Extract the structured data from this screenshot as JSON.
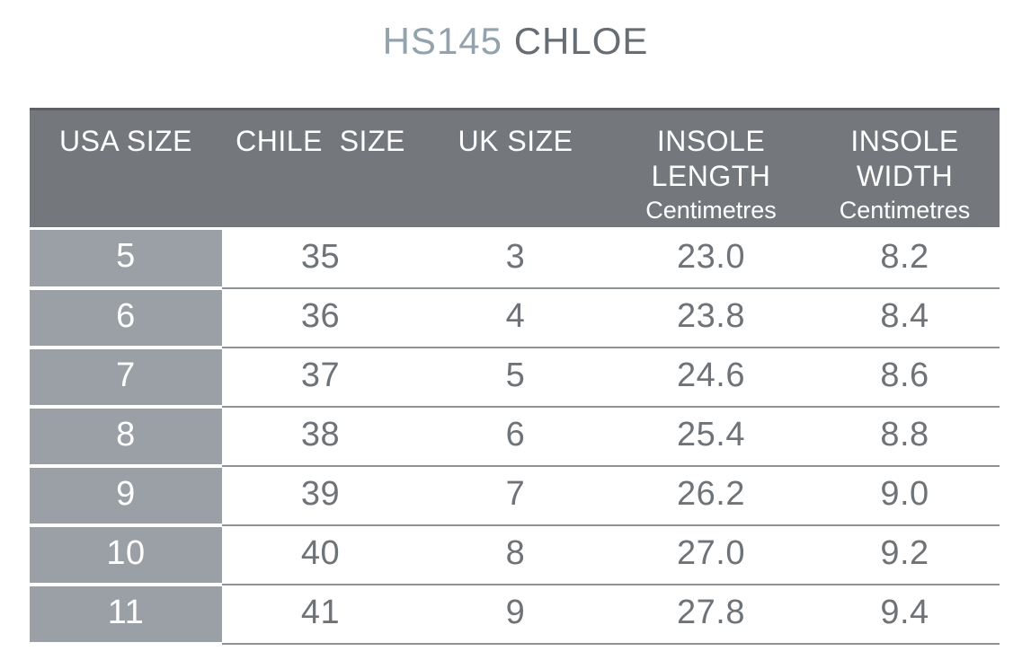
{
  "title": {
    "model": "HS145",
    "name": "CHLOE",
    "full": "HS145 CHLOE"
  },
  "colors": {
    "title_model": "#93a3ad",
    "title_name": "#666d73",
    "header_background": "#74787d",
    "header_top_border": "#5c6064",
    "header_text": "#ffffff",
    "first_column_background": "#9aa0a6",
    "first_column_text": "#ffffff",
    "row_separator_line": "#8e9398",
    "cell_text": "#6e7378",
    "page_background": "#ffffff"
  },
  "table": {
    "columns": [
      {
        "id": "usa",
        "line1": "USA SIZE"
      },
      {
        "id": "chile",
        "line1": "CHILE  SIZE"
      },
      {
        "id": "uk",
        "line1": "UK SIZE"
      },
      {
        "id": "insole_length",
        "line1": "INSOLE",
        "line2": "LENGTH",
        "sub": "Centimetres"
      },
      {
        "id": "insole_width",
        "line1": "INSOLE",
        "line2": "WIDTH",
        "sub": "Centimetres"
      }
    ],
    "rows": [
      {
        "usa": "5",
        "chile": "35",
        "uk": "3",
        "insole_length": "23.0",
        "insole_width": "8.2"
      },
      {
        "usa": "6",
        "chile": "36",
        "uk": "4",
        "insole_length": "23.8",
        "insole_width": "8.4"
      },
      {
        "usa": "7",
        "chile": "37",
        "uk": "5",
        "insole_length": "24.6",
        "insole_width": "8.6"
      },
      {
        "usa": "8",
        "chile": "38",
        "uk": "6",
        "insole_length": "25.4",
        "insole_width": "8.8"
      },
      {
        "usa": "9",
        "chile": "39",
        "uk": "7",
        "insole_length": "26.2",
        "insole_width": "9.0"
      },
      {
        "usa": "10",
        "chile": "40",
        "uk": "8",
        "insole_length": "27.0",
        "insole_width": "9.2"
      },
      {
        "usa": "11",
        "chile": "41",
        "uk": "9",
        "insole_length": "27.8",
        "insole_width": "9.4"
      }
    ]
  }
}
